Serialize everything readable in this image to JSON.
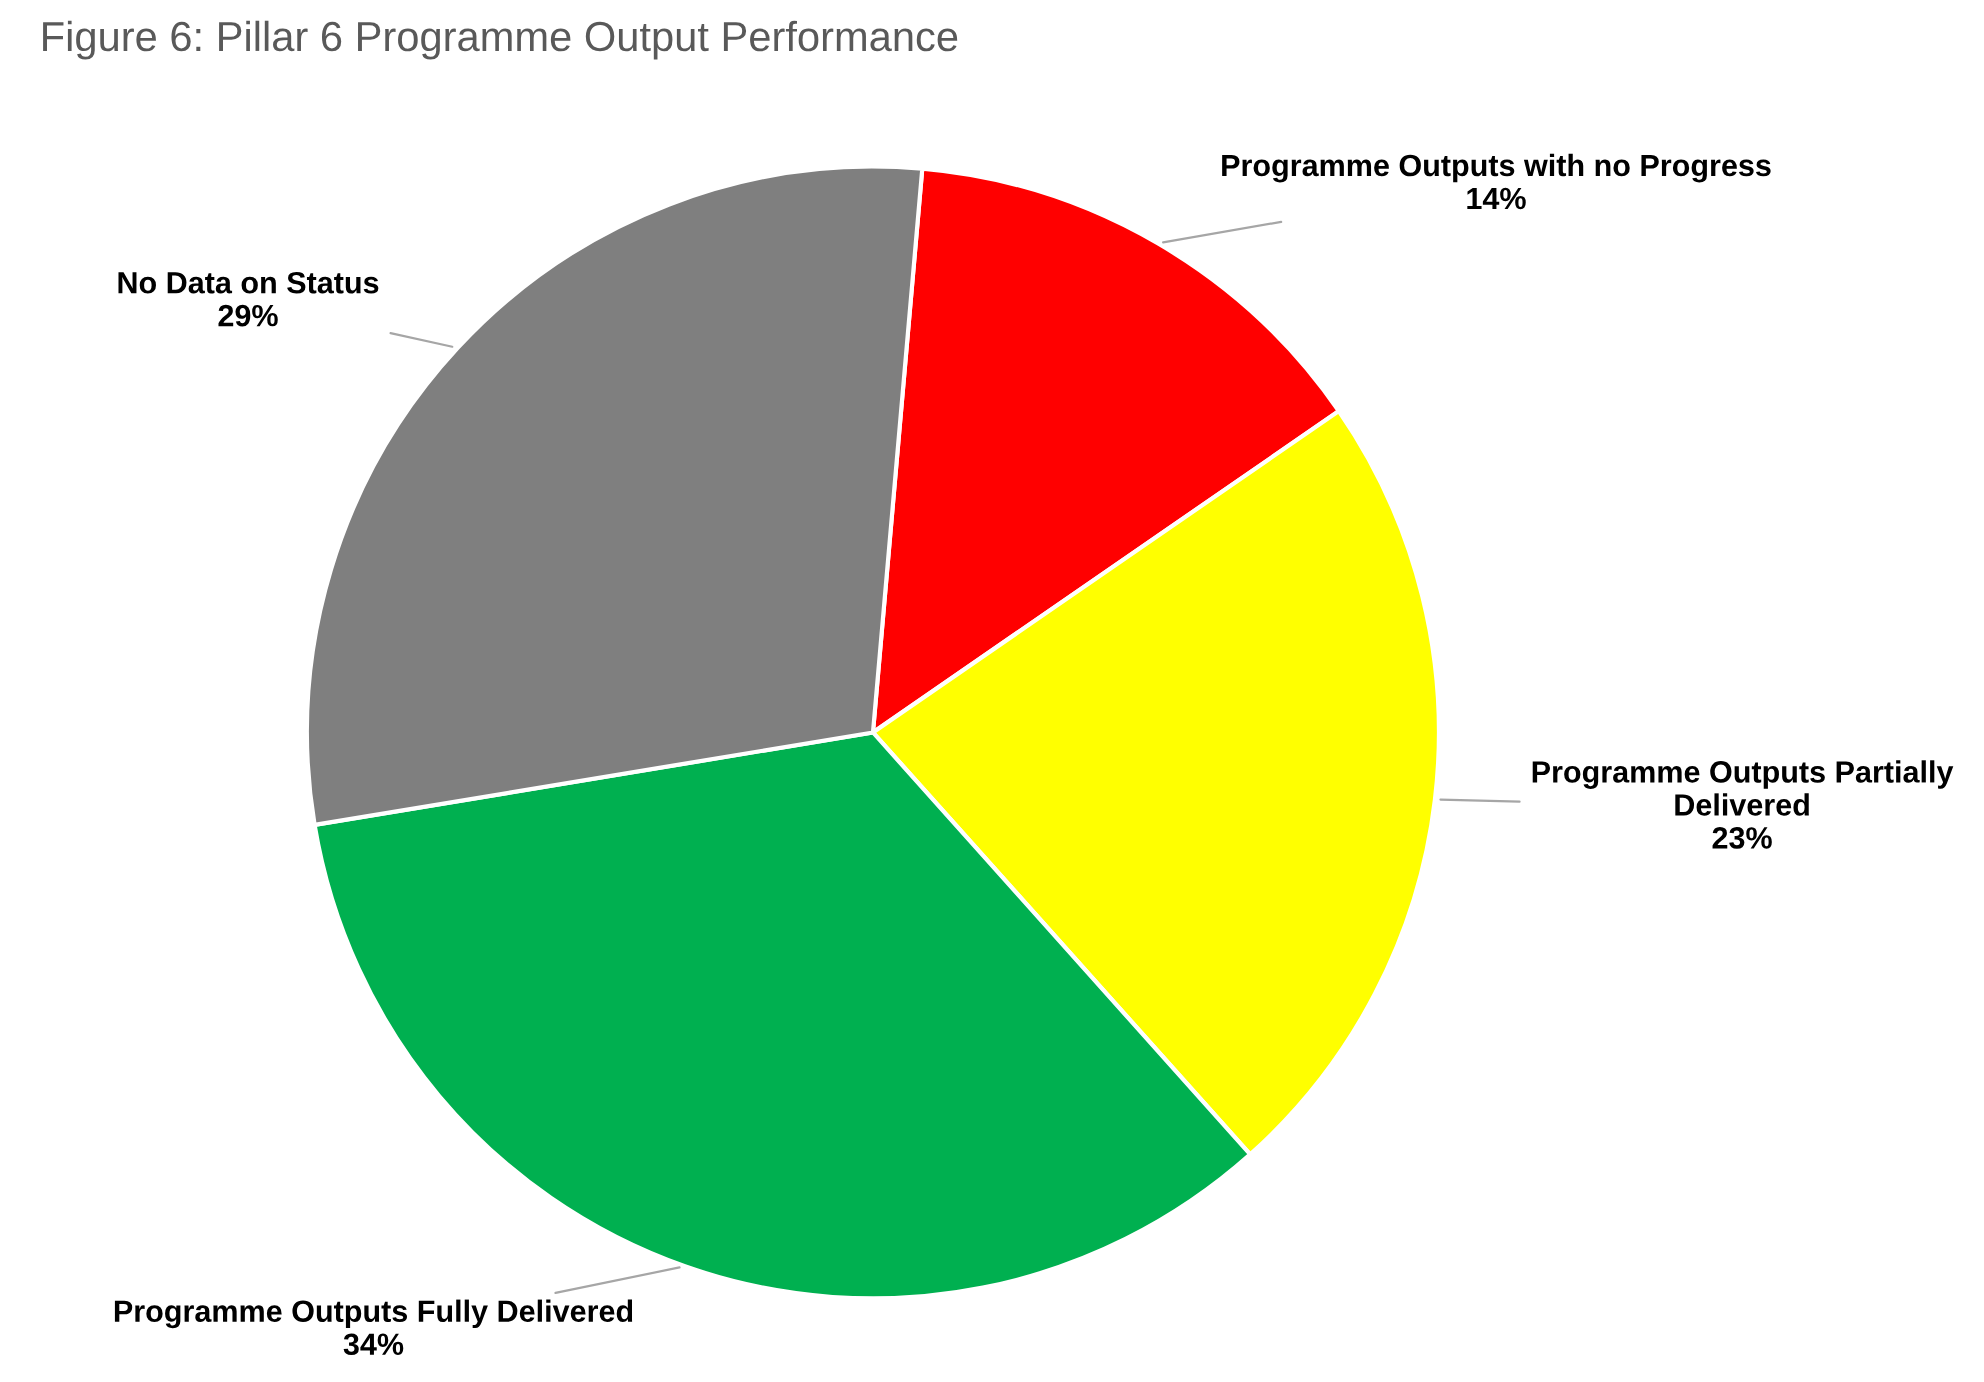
{
  "chart_data": {
    "type": "pie",
    "title": "Figure 6: Pillar 6 Programme Output Performance",
    "categories": [
      "Programme Outputs with no Progress",
      "Programme Outputs Partially Delivered",
      "Programme Outputs Fully Delivered",
      "No Data on Status"
    ],
    "values": [
      14,
      23,
      34,
      29
    ],
    "colors": [
      "#ff0000",
      "#ffff00",
      "#00b050",
      "#7f7f7f"
    ],
    "value_labels": [
      "14%",
      "23%",
      "34%",
      "29%"
    ],
    "legend": false
  }
}
